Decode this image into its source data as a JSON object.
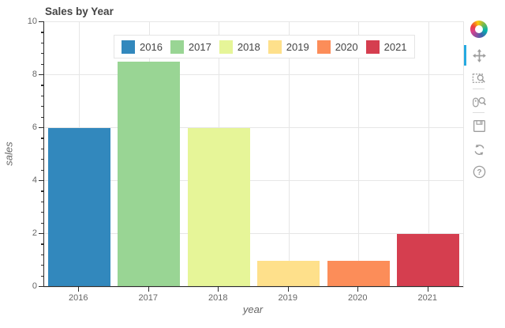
{
  "chart_data": {
    "type": "bar",
    "title": "Sales by Year",
    "categories": [
      "2016",
      "2017",
      "2018",
      "2019",
      "2020",
      "2021"
    ],
    "values": [
      6,
      8.5,
      6,
      1,
      1,
      2
    ],
    "bar_colors": [
      "#3288bd",
      "#99d594",
      "#e6f598",
      "#fee08b",
      "#fc8d59",
      "#d53e4f"
    ],
    "xlabel": "year",
    "ylabel": "sales",
    "ylim": [
      0,
      10
    ],
    "yticks": [
      0,
      2,
      4,
      6,
      8,
      10
    ],
    "minor_tick_step": 0.4,
    "grid": true,
    "legend": {
      "position": "top",
      "entries": [
        "2016",
        "2017",
        "2018",
        "2019",
        "2020",
        "2021"
      ]
    },
    "colors": {
      "grid": "#e6e6e6",
      "axis": "#2b2b2b",
      "tick_label": "#666666",
      "title": "#444444"
    }
  },
  "toolbar": {
    "logo": "bokeh-logo",
    "active_tool": "pan",
    "active_color": "#26aae1",
    "tools": [
      {
        "name": "pan",
        "active": true
      },
      {
        "name": "box-zoom",
        "active": false
      },
      {
        "name": "wheel-zoom",
        "active": false
      },
      {
        "name": "save",
        "active": false
      },
      {
        "name": "reset",
        "active": false
      },
      {
        "name": "help",
        "active": false
      }
    ]
  }
}
